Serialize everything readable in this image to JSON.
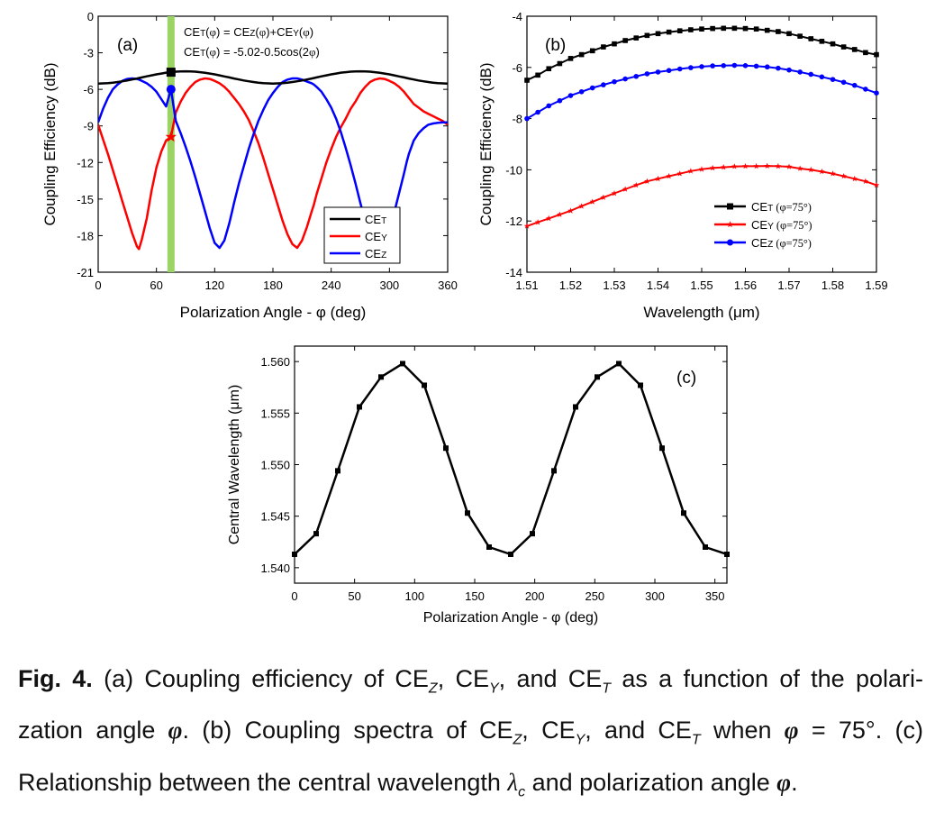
{
  "figure": {
    "caption": {
      "label": "Fig. 4.",
      "a_open": "(a) Coupling efficiency of CE",
      "sub_z": "Z",
      "sep1": ", CE",
      "sub_y": "Y",
      "sep2": ", and CE",
      "sub_t": "T",
      "a_tail": " as a function of the polari-zation angle ",
      "phi": "φ",
      "b_open": ". (b) Coupling spectra of CE",
      "b_tail": " when ",
      "phi_eq": " = 75°.",
      "c_open": " (c) Relationship between the central wavelength ",
      "lambda": "λ",
      "sub_c": "c",
      "c_mid": " and polarization angle ",
      "end": "."
    }
  },
  "chart_data": [
    {
      "id": "a",
      "type": "line",
      "panel_label": "(a)",
      "xlabel": "Polarization Angle - φ (deg)",
      "ylabel": "Coupling Efficiency (dB)",
      "xlim": [
        0,
        360
      ],
      "ylim": [
        -21,
        0
      ],
      "xticks": [
        0,
        60,
        120,
        180,
        240,
        300,
        360
      ],
      "yticks": [
        0,
        -3,
        -6,
        -9,
        -12,
        -15,
        -18,
        -21
      ],
      "annotations": [
        "CET(φ) = CEZ(φ)+CEY(φ)",
        "CET(φ) = -5.02-0.5cos(2φ)"
      ],
      "highlight_x": 75,
      "legend_position": "bottom-right",
      "x": [
        0,
        5,
        10,
        15,
        20,
        25,
        30,
        35,
        40,
        42,
        45,
        50,
        55,
        60,
        65,
        70,
        75,
        80,
        85,
        90,
        95,
        100,
        105,
        110,
        115,
        120,
        125,
        130,
        135,
        138,
        140,
        145,
        150,
        155,
        160,
        165,
        170,
        175,
        180,
        185,
        190,
        195,
        200,
        205,
        210,
        215,
        220,
        222,
        225,
        230,
        235,
        240,
        245,
        250,
        255,
        260,
        265,
        270,
        275,
        280,
        285,
        290,
        295,
        300,
        305,
        310,
        315,
        318,
        320,
        325,
        330,
        335,
        340,
        345,
        350,
        355,
        360
      ],
      "series": [
        {
          "name": "CET",
          "color": "#000000",
          "values": [
            -5.52,
            -5.51,
            -5.49,
            -5.45,
            -5.4,
            -5.34,
            -5.27,
            -5.19,
            -5.11,
            -5.07,
            -5.02,
            -4.93,
            -4.85,
            -4.77,
            -4.7,
            -4.63,
            -4.59,
            -4.55,
            -4.53,
            -4.52,
            -4.53,
            -4.55,
            -4.59,
            -4.64,
            -4.7,
            -4.77,
            -4.85,
            -4.94,
            -5.02,
            -5.07,
            -5.11,
            -5.19,
            -5.27,
            -5.34,
            -5.4,
            -5.45,
            -5.49,
            -5.51,
            -5.52,
            -5.51,
            -5.49,
            -5.45,
            -5.4,
            -5.34,
            -5.27,
            -5.19,
            -5.11,
            -5.07,
            -5.02,
            -4.93,
            -4.85,
            -4.77,
            -4.7,
            -4.63,
            -4.59,
            -4.55,
            -4.53,
            -4.52,
            -4.53,
            -4.55,
            -4.59,
            -4.64,
            -4.7,
            -4.77,
            -4.85,
            -4.94,
            -5.02,
            -5.07,
            -5.11,
            -5.19,
            -5.27,
            -5.34,
            -5.4,
            -5.45,
            -5.49,
            -5.51,
            -5.52
          ]
        },
        {
          "name": "CEY",
          "color": "#ff0000",
          "values": [
            -8.9,
            -10.1,
            -11.3,
            -12.6,
            -13.9,
            -15.2,
            -16.5,
            -17.8,
            -18.9,
            -19.1,
            -18.3,
            -16.6,
            -14.3,
            -12.4,
            -11.1,
            -10.2,
            -9.9,
            -7.9,
            -7.0,
            -6.3,
            -5.8,
            -5.4,
            -5.2,
            -5.1,
            -5.15,
            -5.3,
            -5.5,
            -5.8,
            -6.2,
            -6.5,
            -6.7,
            -7.2,
            -7.8,
            -8.5,
            -9.4,
            -10.4,
            -11.6,
            -12.9,
            -14.2,
            -15.5,
            -16.8,
            -17.9,
            -18.7,
            -19.0,
            -18.4,
            -17.3,
            -16.0,
            -15.5,
            -14.6,
            -13.3,
            -12.0,
            -10.9,
            -9.9,
            -9.1,
            -8.4,
            -7.6,
            -7.0,
            -6.3,
            -5.8,
            -5.4,
            -5.2,
            -5.1,
            -5.15,
            -5.3,
            -5.5,
            -5.8,
            -6.2,
            -6.5,
            -6.7,
            -7.2,
            -7.5,
            -7.8,
            -8.0,
            -8.2,
            -8.4,
            -8.6,
            -8.9
          ]
        },
        {
          "name": "CEZ",
          "color": "#0000ff",
          "values": [
            -8.7,
            -7.6,
            -6.7,
            -6.0,
            -5.6,
            -5.3,
            -5.15,
            -5.1,
            -5.15,
            -5.2,
            -5.3,
            -5.5,
            -5.8,
            -6.2,
            -6.8,
            -7.4,
            -6.0,
            -8.6,
            -9.6,
            -10.7,
            -11.9,
            -13.2,
            -14.6,
            -16.0,
            -17.4,
            -18.6,
            -19.0,
            -18.4,
            -17.0,
            -16.0,
            -15.3,
            -13.7,
            -12.3,
            -10.9,
            -9.7,
            -8.6,
            -7.7,
            -6.9,
            -6.3,
            -5.8,
            -5.4,
            -5.2,
            -5.1,
            -5.1,
            -5.2,
            -5.35,
            -5.5,
            -5.6,
            -5.8,
            -6.2,
            -6.8,
            -7.5,
            -8.4,
            -9.5,
            -10.8,
            -12.2,
            -13.7,
            -15.3,
            -16.8,
            -18.1,
            -18.9,
            -19.1,
            -18.6,
            -17.5,
            -16.1,
            -14.5,
            -12.9,
            -11.9,
            -11.3,
            -10.2,
            -9.6,
            -9.2,
            -8.9,
            -8.8,
            -8.75,
            -8.7,
            -8.7
          ]
        }
      ],
      "markers": [
        {
          "series": "CET",
          "x": 75,
          "y": -4.59
        },
        {
          "series": "CEZ",
          "x": 75,
          "y": -6.0
        },
        {
          "series": "CEY",
          "x": 75,
          "y": -9.9
        }
      ]
    },
    {
      "id": "b",
      "type": "line",
      "panel_label": "(b)",
      "xlabel": "Wavelength (μm)",
      "ylabel": "Coupling Efficiency (dB)",
      "xlim": [
        1.51,
        1.59
      ],
      "ylim": [
        -14,
        -4
      ],
      "xticks": [
        1.51,
        1.52,
        1.53,
        1.54,
        1.55,
        1.56,
        1.57,
        1.58,
        1.59
      ],
      "yticks": [
        -4,
        -6,
        -8,
        -10,
        -12,
        -14
      ],
      "legend_position": "bottom-right",
      "x": [
        1.51,
        1.5125,
        1.515,
        1.5175,
        1.52,
        1.5225,
        1.525,
        1.5275,
        1.53,
        1.5325,
        1.535,
        1.5375,
        1.54,
        1.5425,
        1.545,
        1.5475,
        1.55,
        1.5525,
        1.555,
        1.5575,
        1.56,
        1.5625,
        1.565,
        1.5675,
        1.57,
        1.5725,
        1.575,
        1.5775,
        1.58,
        1.5825,
        1.585,
        1.5875,
        1.59
      ],
      "series": [
        {
          "name": "CET (φ=75°)",
          "color": "#000000",
          "marker": "square",
          "values": [
            -6.5,
            -6.3,
            -6.05,
            -5.85,
            -5.65,
            -5.5,
            -5.35,
            -5.2,
            -5.08,
            -4.95,
            -4.85,
            -4.75,
            -4.68,
            -4.62,
            -4.57,
            -4.53,
            -4.5,
            -4.48,
            -4.47,
            -4.47,
            -4.48,
            -4.5,
            -4.55,
            -4.6,
            -4.68,
            -4.78,
            -4.88,
            -4.98,
            -5.08,
            -5.2,
            -5.3,
            -5.42,
            -5.5
          ]
        },
        {
          "name": "CEY (φ=75°)",
          "color": "#ff0000",
          "marker": "star",
          "values": [
            -12.2,
            -12.05,
            -11.9,
            -11.75,
            -11.6,
            -11.42,
            -11.25,
            -11.08,
            -10.92,
            -10.76,
            -10.6,
            -10.45,
            -10.35,
            -10.25,
            -10.15,
            -10.05,
            -9.98,
            -9.93,
            -9.9,
            -9.87,
            -9.86,
            -9.86,
            -9.85,
            -9.86,
            -9.88,
            -9.95,
            -10.0,
            -10.07,
            -10.15,
            -10.25,
            -10.35,
            -10.45,
            -10.6
          ]
        },
        {
          "name": "CEZ (φ=75°)",
          "color": "#0000ff",
          "marker": "circle",
          "values": [
            -8.0,
            -7.75,
            -7.5,
            -7.3,
            -7.1,
            -6.95,
            -6.8,
            -6.68,
            -6.56,
            -6.45,
            -6.35,
            -6.25,
            -6.18,
            -6.12,
            -6.06,
            -6.01,
            -5.97,
            -5.94,
            -5.93,
            -5.92,
            -5.93,
            -5.95,
            -5.98,
            -6.03,
            -6.1,
            -6.18,
            -6.27,
            -6.37,
            -6.47,
            -6.58,
            -6.7,
            -6.85,
            -7.0
          ]
        }
      ]
    },
    {
      "id": "c",
      "type": "line",
      "panel_label": "(c)",
      "xlabel": "Polarization Angle - φ (deg)",
      "ylabel": "Central Wavelength (μm)",
      "xlim": [
        0,
        360
      ],
      "ylim": [
        1.5385,
        1.5615
      ],
      "xticks": [
        0,
        50,
        100,
        150,
        200,
        250,
        300,
        350
      ],
      "yticks": [
        1.54,
        1.545,
        1.55,
        1.555,
        1.56
      ],
      "ytick_labels": [
        "1.540",
        "1.545",
        "1.550",
        "1.555",
        "1.560"
      ],
      "x": [
        0,
        18,
        36,
        54,
        72,
        90,
        108,
        126,
        144,
        162,
        180,
        198,
        216,
        234,
        252,
        270,
        288,
        306,
        324,
        342,
        360
      ],
      "series": [
        {
          "name": "",
          "color": "#000000",
          "marker": "square",
          "values": [
            1.5413,
            1.5433,
            1.5494,
            1.5556,
            1.5585,
            1.5598,
            1.5577,
            1.5516,
            1.5453,
            1.542,
            1.5413,
            1.5433,
            1.5494,
            1.5556,
            1.5585,
            1.5598,
            1.5577,
            1.5516,
            1.5453,
            1.542,
            1.5413
          ]
        }
      ]
    }
  ]
}
